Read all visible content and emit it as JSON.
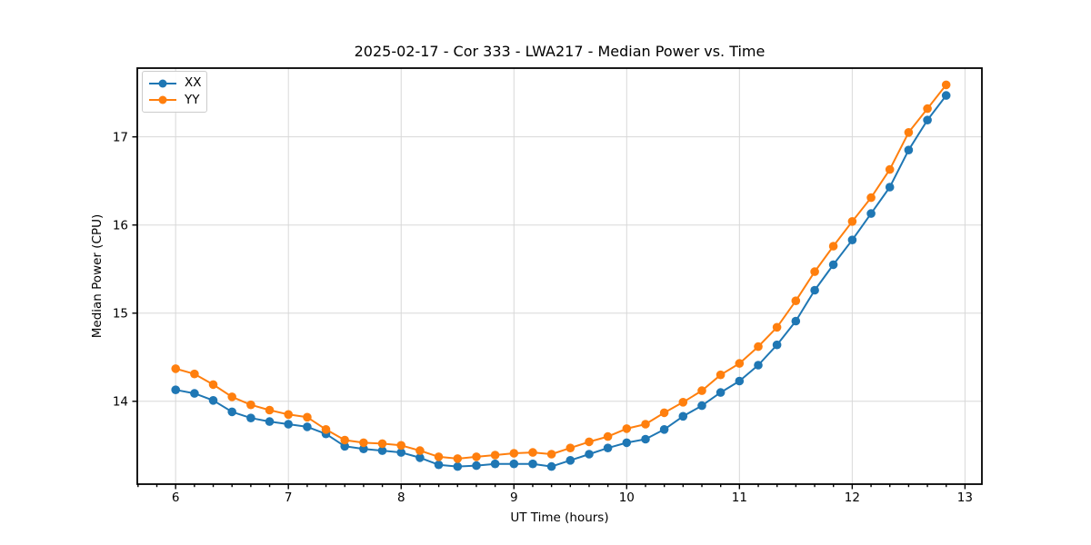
{
  "chart_data": {
    "type": "line",
    "title": "2025-02-17 - Cor 333 - LWA217 - Median Power vs. Time",
    "xlabel": "UT Time (hours)",
    "ylabel": "Median Power (CPU)",
    "xlim": [
      5.66,
      13.15
    ],
    "ylim": [
      13.06,
      17.78
    ],
    "x_ticks": [
      6,
      7,
      8,
      9,
      10,
      11,
      12,
      13
    ],
    "x_tick_labels": [
      "6",
      "7",
      "8",
      "9",
      "10",
      "11",
      "12",
      "13"
    ],
    "y_ticks": [
      14,
      15,
      16,
      17
    ],
    "y_tick_labels": [
      "14",
      "15",
      "16",
      "17"
    ],
    "x_minor_tick_step": 0.16667,
    "grid": true,
    "legend_position": "upper-left",
    "marker": "circle",
    "x": [
      6.0,
      6.167,
      6.333,
      6.5,
      6.667,
      6.833,
      7.0,
      7.167,
      7.333,
      7.5,
      7.667,
      7.833,
      8.0,
      8.167,
      8.333,
      8.5,
      8.667,
      8.833,
      9.0,
      9.167,
      9.333,
      9.5,
      9.667,
      9.833,
      10.0,
      10.167,
      10.333,
      10.5,
      10.667,
      10.833,
      11.0,
      11.167,
      11.333,
      11.5,
      11.667,
      11.833,
      12.0,
      12.167,
      12.333,
      12.5,
      12.667,
      12.833
    ],
    "series": [
      {
        "name": "XX",
        "color": "#1f77b4",
        "values": [
          14.13,
          14.09,
          14.01,
          13.88,
          13.81,
          13.77,
          13.74,
          13.71,
          13.63,
          13.49,
          13.46,
          13.44,
          13.42,
          13.36,
          13.28,
          13.26,
          13.27,
          13.29,
          13.29,
          13.29,
          13.26,
          13.33,
          13.4,
          13.47,
          13.53,
          13.57,
          13.68,
          13.83,
          13.95,
          14.1,
          14.23,
          14.41,
          14.64,
          14.91,
          15.26,
          15.55,
          15.83,
          16.13,
          16.43,
          16.85,
          17.19,
          17.47
        ]
      },
      {
        "name": "YY",
        "color": "#ff7f0e",
        "values": [
          14.37,
          14.31,
          14.19,
          14.05,
          13.96,
          13.9,
          13.85,
          13.82,
          13.68,
          13.56,
          13.53,
          13.52,
          13.5,
          13.44,
          13.37,
          13.35,
          13.37,
          13.39,
          13.41,
          13.42,
          13.4,
          13.47,
          13.54,
          13.6,
          13.69,
          13.74,
          13.87,
          13.99,
          14.12,
          14.3,
          14.43,
          14.62,
          14.84,
          15.14,
          15.47,
          15.76,
          16.04,
          16.31,
          16.63,
          17.05,
          17.32,
          17.59
        ]
      }
    ]
  },
  "style": {
    "grid_color": "#d8d8d8",
    "spine_color": "#000000",
    "tick_color": "#000000",
    "text_color": "#000000",
    "legend_border": "#cccccc",
    "background": "#ffffff"
  }
}
